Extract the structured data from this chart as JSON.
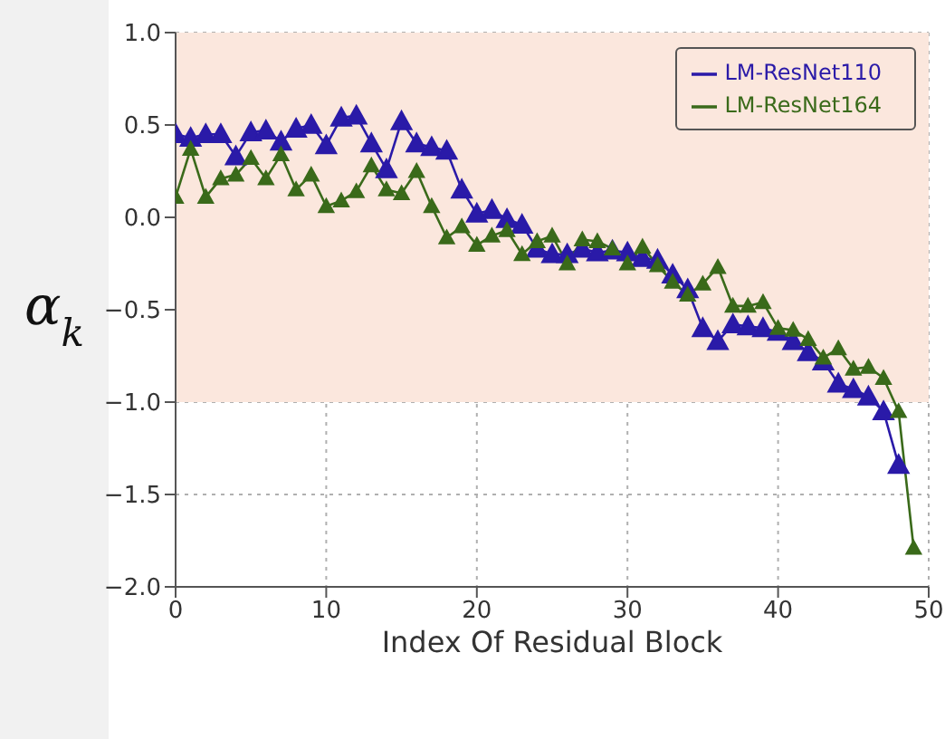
{
  "chart_data": {
    "type": "line",
    "xlabel": "Index Of Residual Block",
    "ylabel": "α$_{k}$",
    "x": [
      0,
      1,
      2,
      3,
      4,
      5,
      6,
      7,
      8,
      9,
      10,
      11,
      12,
      13,
      14,
      15,
      16,
      17,
      18,
      19,
      20,
      21,
      22,
      23,
      24,
      25,
      26,
      27,
      28,
      29,
      30,
      31,
      32,
      33,
      34,
      35,
      36,
      37,
      38,
      39,
      40,
      41,
      42,
      43,
      44,
      45,
      46,
      47,
      48,
      49
    ],
    "series": [
      {
        "name": "LM-ResNet110",
        "color": "#2a1aa8",
        "values": [
          0.45,
          0.43,
          0.45,
          0.45,
          0.33,
          0.46,
          0.47,
          0.41,
          0.48,
          0.5,
          0.39,
          0.54,
          0.55,
          0.4,
          0.26,
          0.52,
          0.4,
          0.38,
          0.36,
          0.15,
          0.02,
          0.04,
          -0.01,
          -0.04,
          -0.17,
          -0.2,
          -0.2,
          -0.17,
          -0.19,
          -0.18,
          -0.19,
          -0.22,
          -0.23,
          -0.31,
          -0.39,
          -0.6,
          -0.67,
          -0.58,
          -0.59,
          -0.6,
          -0.62,
          -0.67,
          -0.73,
          -0.78,
          -0.9,
          -0.93,
          -0.97,
          -1.05,
          -1.34,
          null
        ]
      },
      {
        "name": "LM-ResNet164",
        "color": "#3a6a1a",
        "values": [
          0.11,
          0.37,
          0.11,
          0.21,
          0.23,
          0.32,
          0.21,
          0.34,
          0.15,
          0.23,
          0.06,
          0.09,
          0.14,
          0.28,
          0.15,
          0.13,
          0.25,
          0.06,
          -0.11,
          -0.05,
          -0.15,
          -0.1,
          -0.07,
          -0.2,
          -0.13,
          -0.1,
          -0.25,
          -0.12,
          -0.13,
          -0.17,
          -0.25,
          -0.16,
          -0.26,
          -0.35,
          -0.42,
          -0.36,
          -0.27,
          -0.48,
          -0.48,
          -0.46,
          -0.6,
          -0.61,
          -0.66,
          -0.76,
          -0.71,
          -0.82,
          -0.81,
          -0.87,
          -1.05,
          -1.79
        ]
      }
    ],
    "xlim": [
      0,
      50
    ],
    "xticks": [
      0,
      10,
      20,
      30,
      40,
      50
    ],
    "ylim": [
      -2,
      1
    ],
    "yticks": [
      {
        "value": -2,
        "label": "−2.0"
      },
      {
        "value": -1.5,
        "label": "−1.5"
      },
      {
        "value": -1,
        "label": "−1.0"
      },
      {
        "value": -0.5,
        "label": "−0.5"
      },
      {
        "value": 0,
        "label": "0.0"
      },
      {
        "value": 0.5,
        "label": "0.5"
      },
      {
        "value": 1,
        "label": "1.0"
      }
    ],
    "bands": [
      {
        "axis": "y",
        "from": -1,
        "to": 1,
        "color": "#fbe7dd"
      }
    ],
    "grid": true,
    "legend": "top right",
    "marker": "triangle",
    "line_style": "solid"
  }
}
